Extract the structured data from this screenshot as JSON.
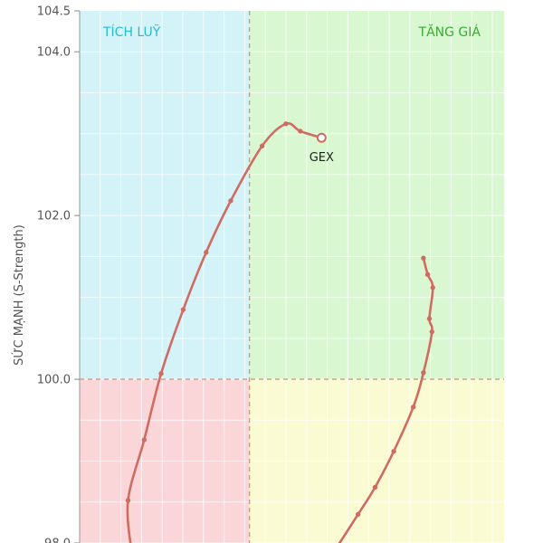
{
  "chart_data": {
    "type": "scatter",
    "ylabel": "SỨC MẠNH (S-Strength)",
    "xlim": [
      98.0,
      103.0
    ],
    "ylim": [
      98.0,
      104.5
    ],
    "x_center": 100.0,
    "y_center": 100.0,
    "y_ticks": [
      98.0,
      100.0,
      102.0,
      104.0,
      104.5
    ],
    "y_tick_labels": [
      "98.0",
      "100.0",
      "102.0",
      "104.0",
      "104.5"
    ],
    "grid": true,
    "quadrants": {
      "top_left": {
        "label": "TÍCH LUỸ",
        "color": "#d4f3f8",
        "label_color": "#2bbccc"
      },
      "top_right": {
        "label": "TĂNG GIÁ",
        "color": "#d9f8d2",
        "label_color": "#3aaa35"
      },
      "bottom_left": {
        "label": "",
        "color": "#fbd6d9"
      },
      "bottom_right": {
        "label": "",
        "color": "#fbfbd3"
      }
    },
    "series": [
      {
        "name": "GEX",
        "color": "#d06b62",
        "label": "GEX",
        "points": [
          {
            "x": 98.61,
            "y": 97.9
          },
          {
            "x": 98.57,
            "y": 98.52
          },
          {
            "x": 98.76,
            "y": 99.26
          },
          {
            "x": 98.96,
            "y": 100.07
          },
          {
            "x": 99.22,
            "y": 100.85
          },
          {
            "x": 99.49,
            "y": 101.55
          },
          {
            "x": 99.78,
            "y": 102.18
          },
          {
            "x": 100.15,
            "y": 102.85
          },
          {
            "x": 100.43,
            "y": 103.12
          },
          {
            "x": 100.6,
            "y": 103.03
          },
          {
            "x": 100.85,
            "y": 102.95
          }
        ]
      },
      {
        "name": "",
        "color": "#d06b62",
        "label": "",
        "points": [
          {
            "x": 101.0,
            "y": 97.9
          },
          {
            "x": 101.28,
            "y": 98.35
          },
          {
            "x": 101.48,
            "y": 98.68
          },
          {
            "x": 101.7,
            "y": 99.12
          },
          {
            "x": 101.93,
            "y": 99.66
          },
          {
            "x": 102.05,
            "y": 100.08
          },
          {
            "x": 102.15,
            "y": 100.58
          },
          {
            "x": 102.12,
            "y": 100.74
          },
          {
            "x": 102.16,
            "y": 101.12
          },
          {
            "x": 102.1,
            "y": 101.28
          },
          {
            "x": 102.05,
            "y": 101.48
          }
        ]
      }
    ]
  }
}
